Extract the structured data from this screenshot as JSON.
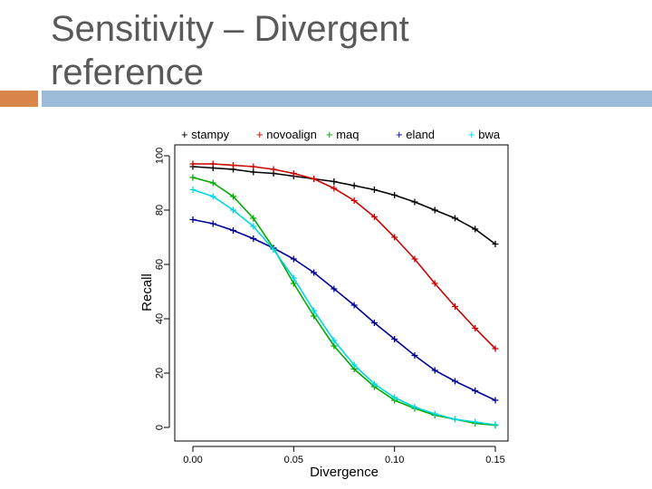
{
  "slide": {
    "title": "Sensitivity – Divergent reference"
  },
  "colors": {
    "accent": "#d8864a",
    "bar": "#9bbbd9",
    "title": "#595959"
  },
  "chart_data": {
    "type": "line",
    "xlabel": "Divergence",
    "ylabel": "Recall",
    "xlim": [
      0,
      0.15
    ],
    "ylim": [
      0,
      100
    ],
    "xticks": [
      "0.00",
      "0.05",
      "0.10",
      "0.15"
    ],
    "xtick_values": [
      0,
      0.05,
      0.1,
      0.15
    ],
    "yticks": [
      "0",
      "20",
      "40",
      "60",
      "80",
      "100"
    ],
    "ytick_values": [
      0,
      20,
      40,
      60,
      80,
      100
    ],
    "legend_position": "top",
    "grid": false,
    "x": [
      0,
      0.01,
      0.02,
      0.03,
      0.04,
      0.05,
      0.06,
      0.07,
      0.08,
      0.09,
      0.1,
      0.11,
      0.12,
      0.13,
      0.14,
      0.15
    ],
    "series": [
      {
        "name": "stampy",
        "color": "#000000",
        "marker": "+",
        "values": [
          96,
          95.5,
          95,
          94,
          93.5,
          92.5,
          91.5,
          90.5,
          89,
          87.5,
          85.5,
          83,
          80,
          77,
          73,
          67.5
        ]
      },
      {
        "name": "novoalign",
        "color": "#cc0000",
        "marker": "+",
        "values": [
          97,
          97,
          96.5,
          96,
          95,
          93.5,
          91.5,
          88,
          83.5,
          77.5,
          70,
          62,
          53,
          44.5,
          36.5,
          29
        ]
      },
      {
        "name": "maq",
        "color": "#00aa00",
        "marker": "+",
        "values": [
          92,
          90,
          85,
          77,
          66,
          53,
          41,
          30,
          21.5,
          15,
          10,
          7,
          4.5,
          3,
          1.5,
          0.8
        ]
      },
      {
        "name": "eland",
        "color": "#000099",
        "marker": "+",
        "values": [
          76.5,
          75,
          72.5,
          69.5,
          66,
          62,
          57,
          51,
          45,
          38.5,
          32.5,
          26.5,
          21,
          17,
          13.5,
          10
        ]
      },
      {
        "name": "bwa",
        "color": "#00d8e0",
        "marker": "+",
        "values": [
          87.5,
          85,
          80,
          74,
          65.5,
          55,
          43,
          32,
          23,
          16,
          11,
          7.5,
          5,
          3,
          2,
          1
        ]
      }
    ]
  }
}
